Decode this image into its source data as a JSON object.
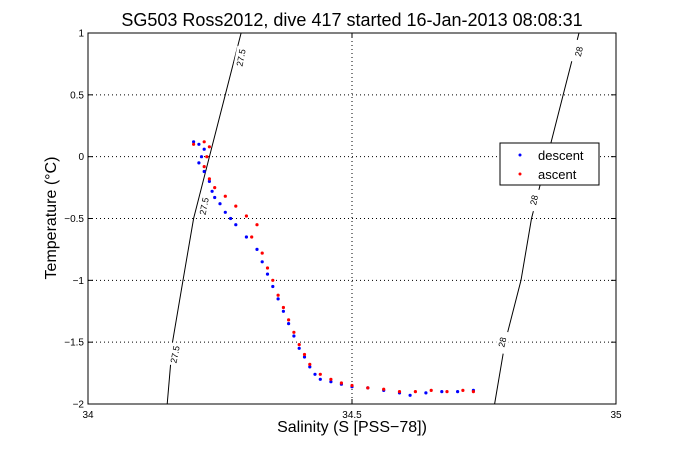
{
  "chart_data": {
    "type": "scatter",
    "title": "SG503 Ross2012, dive 417 started 16-Jan-2013 08:08:31",
    "xlabel": "Salinity (S [PSS−78])",
    "ylabel": "Temperature (°C)",
    "xlim": [
      34,
      35
    ],
    "ylim": [
      -2,
      1
    ],
    "grid": true,
    "legend_position": "right",
    "x_ticks": [
      {
        "value": 34,
        "label": "34"
      },
      {
        "value": 34.5,
        "label": "34.5"
      },
      {
        "value": 35,
        "label": "35"
      }
    ],
    "y_ticks": [
      {
        "value": 1,
        "label": "1"
      },
      {
        "value": 0.5,
        "label": "0.5"
      },
      {
        "value": 0,
        "label": "0"
      },
      {
        "value": -0.5,
        "label": "−0.5"
      },
      {
        "value": -1,
        "label": "−1"
      },
      {
        "value": -1.5,
        "label": "−1.5"
      },
      {
        "value": -2,
        "label": "−2"
      }
    ],
    "contours": [
      {
        "label": "27.5",
        "points": [
          [
            34.15,
            -2
          ],
          [
            34.16,
            -1.5
          ],
          [
            34.18,
            -1
          ],
          [
            34.2,
            -0.5
          ],
          [
            34.23,
            0
          ],
          [
            34.26,
            0.5
          ],
          [
            34.29,
            1
          ]
        ],
        "label_positions": [
          [
            34.165,
            -1.6
          ],
          [
            34.22,
            -0.4
          ],
          [
            34.29,
            0.8
          ]
        ]
      },
      {
        "label": "28",
        "points": [
          [
            34.77,
            -2
          ],
          [
            34.79,
            -1.5
          ],
          [
            34.82,
            -1
          ],
          [
            34.84,
            -0.5
          ],
          [
            34.87,
            0
          ],
          [
            34.9,
            0.5
          ],
          [
            34.93,
            1
          ]
        ],
        "label_positions": [
          [
            34.785,
            -1.5
          ],
          [
            34.845,
            -0.35
          ],
          [
            34.93,
            0.85
          ]
        ]
      }
    ],
    "series": [
      {
        "name": "descent",
        "color": "#0000ff",
        "marker": "dot",
        "points": [
          [
            34.2,
            0.12
          ],
          [
            34.21,
            0.1
          ],
          [
            34.22,
            0.06
          ],
          [
            34.215,
            0.0
          ],
          [
            34.21,
            -0.05
          ],
          [
            34.22,
            -0.12
          ],
          [
            34.23,
            -0.2
          ],
          [
            34.235,
            -0.28
          ],
          [
            34.24,
            -0.33
          ],
          [
            34.25,
            -0.38
          ],
          [
            34.26,
            -0.45
          ],
          [
            34.27,
            -0.5
          ],
          [
            34.28,
            -0.55
          ],
          [
            34.3,
            -0.65
          ],
          [
            34.32,
            -0.75
          ],
          [
            34.33,
            -0.85
          ],
          [
            34.34,
            -0.95
          ],
          [
            34.35,
            -1.05
          ],
          [
            34.36,
            -1.15
          ],
          [
            34.37,
            -1.25
          ],
          [
            34.38,
            -1.35
          ],
          [
            34.39,
            -1.45
          ],
          [
            34.4,
            -1.55
          ],
          [
            34.41,
            -1.62
          ],
          [
            34.42,
            -1.7
          ],
          [
            34.43,
            -1.76
          ],
          [
            34.44,
            -1.8
          ],
          [
            34.46,
            -1.82
          ],
          [
            34.48,
            -1.84
          ],
          [
            34.5,
            -1.86
          ],
          [
            34.53,
            -1.87
          ],
          [
            34.56,
            -1.89
          ],
          [
            34.59,
            -1.91
          ],
          [
            34.61,
            -1.93
          ],
          [
            34.64,
            -1.91
          ],
          [
            34.67,
            -1.9
          ],
          [
            34.7,
            -1.9
          ],
          [
            34.73,
            -1.89
          ]
        ]
      },
      {
        "name": "ascent",
        "color": "#ff0000",
        "marker": "dot",
        "points": [
          [
            34.2,
            0.1
          ],
          [
            34.22,
            0.12
          ],
          [
            34.23,
            0.08
          ],
          [
            34.225,
            0.0
          ],
          [
            34.22,
            -0.08
          ],
          [
            34.23,
            -0.18
          ],
          [
            34.24,
            -0.25
          ],
          [
            34.26,
            -0.32
          ],
          [
            34.28,
            -0.4
          ],
          [
            34.3,
            -0.48
          ],
          [
            34.32,
            -0.55
          ],
          [
            34.31,
            -0.65
          ],
          [
            34.33,
            -0.78
          ],
          [
            34.34,
            -0.9
          ],
          [
            34.35,
            -1.0
          ],
          [
            34.36,
            -1.12
          ],
          [
            34.37,
            -1.22
          ],
          [
            34.38,
            -1.32
          ],
          [
            34.39,
            -1.42
          ],
          [
            34.4,
            -1.52
          ],
          [
            34.41,
            -1.6
          ],
          [
            34.42,
            -1.68
          ],
          [
            34.44,
            -1.76
          ],
          [
            34.46,
            -1.8
          ],
          [
            34.48,
            -1.83
          ],
          [
            34.5,
            -1.85
          ],
          [
            34.53,
            -1.87
          ],
          [
            34.56,
            -1.88
          ],
          [
            34.59,
            -1.9
          ],
          [
            34.62,
            -1.9
          ],
          [
            34.65,
            -1.89
          ],
          [
            34.68,
            -1.9
          ],
          [
            34.71,
            -1.89
          ],
          [
            34.73,
            -1.9
          ]
        ]
      }
    ]
  }
}
